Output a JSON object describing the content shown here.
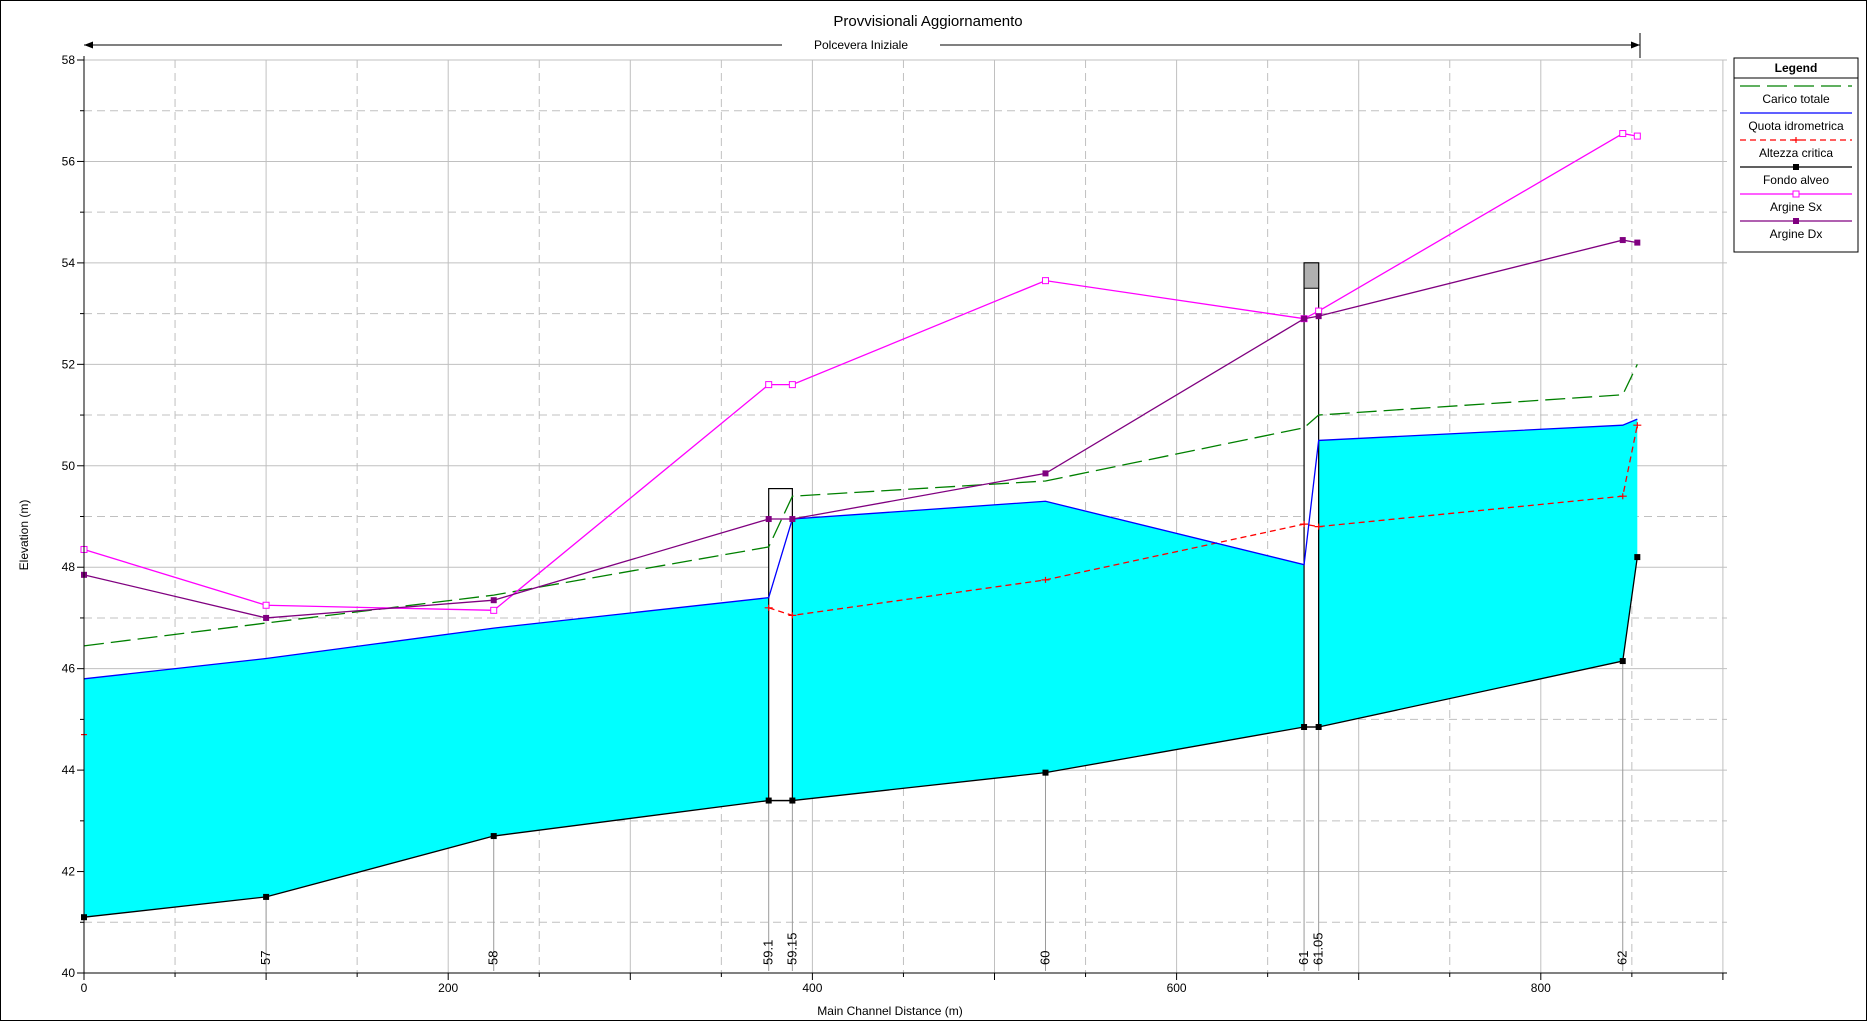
{
  "chart_data": {
    "type": "line",
    "title": "Provvisionali Aggiornamento",
    "subtitle": "Polcevera Iniziale",
    "xlabel": "Main Channel Distance (m)",
    "ylabel": "Elevation (m)",
    "xlim": [
      0,
      900
    ],
    "ylim": [
      40,
      58
    ],
    "x_ticks": [
      0,
      200,
      400,
      600,
      800
    ],
    "y_ticks": [
      40,
      42,
      44,
      46,
      48,
      50,
      52,
      54,
      56,
      58
    ],
    "grid": true,
    "legend": {
      "title": "Legend",
      "placement": "top-right",
      "entries": [
        "Carico totale",
        "Quota idrometrica",
        "Altezza critica",
        "Fondo alveo",
        "Argine Sx",
        "Argine Dx"
      ]
    },
    "colors": {
      "water_fill": "#00FFFF",
      "Carico totale": "#008000",
      "Quota idrometrica": "#0000FF",
      "Altezza critica": "#FF0000",
      "Fondo alveo": "#000000",
      "Argine Sx": "#FF00FF",
      "Argine Dx": "#800080"
    },
    "stations": [
      {
        "label": "57",
        "x": 100
      },
      {
        "label": "58",
        "x": 225
      },
      {
        "label": "59.1",
        "x": 376
      },
      {
        "label": "59.15",
        "x": 389
      },
      {
        "label": "60",
        "x": 528
      },
      {
        "label": "61",
        "x": 670
      },
      {
        "label": "61.05",
        "x": 678
      },
      {
        "label": "62",
        "x": 845
      }
    ],
    "series": [
      {
        "name": "Carico totale",
        "style": "long-dash",
        "x": [
          0,
          100,
          225,
          376,
          389,
          528,
          670,
          678,
          845,
          853
        ],
        "y": [
          46.45,
          46.9,
          47.45,
          48.4,
          49.4,
          49.7,
          50.75,
          51.0,
          51.4,
          52.0
        ]
      },
      {
        "name": "Quota idrometrica",
        "style": "solid",
        "x": [
          0,
          100,
          225,
          376,
          389,
          528,
          670,
          678,
          845,
          853
        ],
        "y": [
          45.8,
          46.2,
          46.8,
          47.4,
          48.95,
          49.3,
          48.05,
          50.5,
          50.8,
          50.92
        ]
      },
      {
        "name": "Altezza critica",
        "style": "short-dash",
        "x": [
          376,
          389,
          528,
          670,
          678,
          845,
          853
        ],
        "y": [
          47.2,
          47.05,
          47.75,
          48.85,
          48.8,
          49.4,
          50.8
        ]
      },
      {
        "name": "Fondo alveo",
        "style": "solid",
        "marker": "filled-square",
        "x": [
          0,
          100,
          225,
          376,
          389,
          528,
          670,
          678,
          845,
          853
        ],
        "y": [
          41.1,
          41.5,
          42.7,
          43.4,
          43.4,
          43.95,
          44.85,
          44.85,
          46.15,
          48.2
        ]
      },
      {
        "name": "Argine Sx",
        "style": "solid",
        "marker": "open-square",
        "x": [
          0,
          100,
          225,
          376,
          389,
          528,
          670,
          678,
          845,
          853
        ],
        "y": [
          48.35,
          47.25,
          47.15,
          51.6,
          51.6,
          53.65,
          52.9,
          53.05,
          56.55,
          56.5
        ]
      },
      {
        "name": "Argine Dx",
        "style": "solid",
        "marker": "filled-square",
        "x": [
          0,
          100,
          225,
          376,
          389,
          528,
          670,
          678,
          845,
          853
        ],
        "y": [
          47.85,
          47.0,
          47.35,
          48.95,
          48.95,
          49.85,
          52.9,
          52.95,
          54.45,
          54.4
        ]
      }
    ],
    "structures": [
      {
        "x_start": 376,
        "x_end": 389,
        "bottom": 43.4,
        "top": 49.55
      },
      {
        "x_start": 670,
        "x_end": 678,
        "bottom": 44.85,
        "top": 54.0,
        "shaded_from": 53.5
      }
    ]
  }
}
